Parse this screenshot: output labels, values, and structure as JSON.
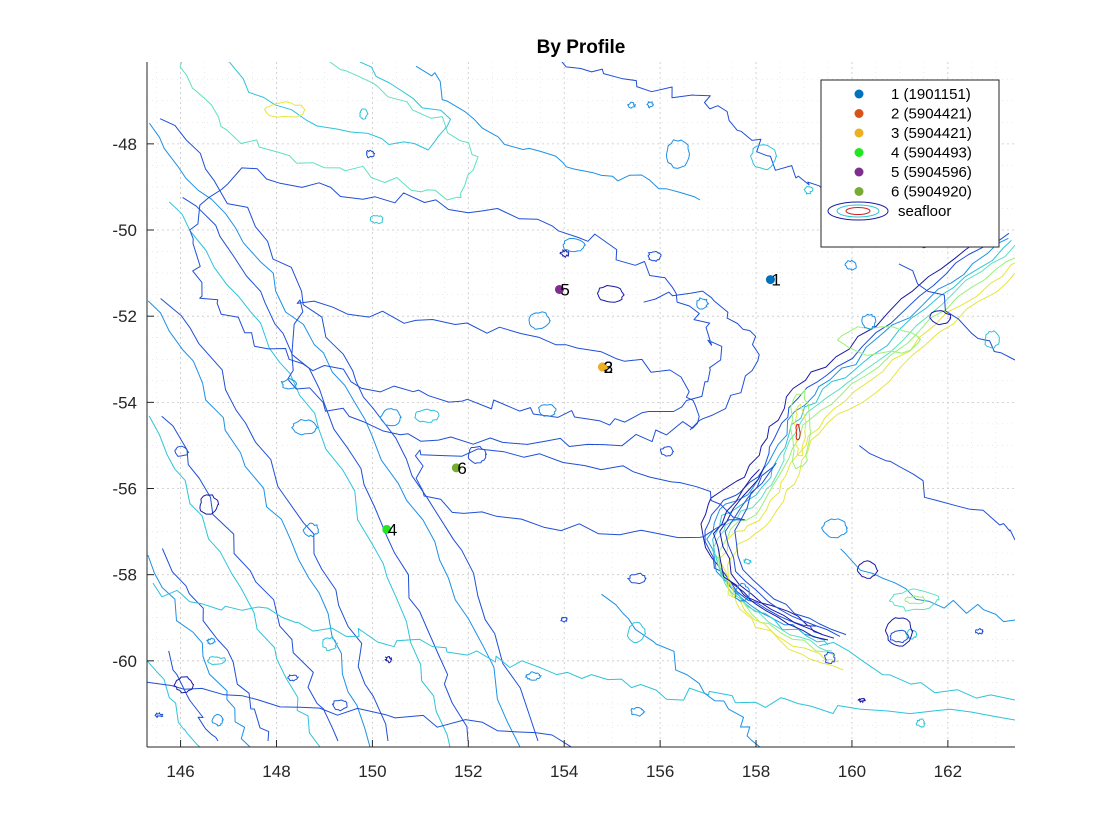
{
  "chart_data": {
    "type": "scatter",
    "title": "By Profile",
    "xlim": [
      145.3,
      163.4
    ],
    "ylim": [
      -62,
      -46.1
    ],
    "xticks": [
      146,
      148,
      150,
      152,
      154,
      156,
      158,
      160,
      162
    ],
    "yticks": [
      -48,
      -50,
      -52,
      -54,
      -56,
      -58,
      -60
    ],
    "grid": true,
    "minor_grid": true,
    "legend_position": "top-right",
    "series": [
      {
        "name": "1 (1901151)",
        "label": "1",
        "color": "#0072BD",
        "x": [
          158.3
        ],
        "y": [
          -51.15
        ]
      },
      {
        "name": "2 (5904421)",
        "label": "2",
        "color": "#D95319",
        "x": [
          154.8
        ],
        "y": [
          -53.18
        ]
      },
      {
        "name": "3 (5904421)",
        "label": "3",
        "color": "#EDB120",
        "x": [
          154.8
        ],
        "y": [
          -53.18
        ]
      },
      {
        "name": "4 (5904493)",
        "label": "4",
        "color": "#22E622",
        "x": [
          150.3
        ],
        "y": [
          -56.95
        ]
      },
      {
        "name": "5 (5904596)",
        "label": "5",
        "color": "#7E2F8E",
        "x": [
          153.9
        ],
        "y": [
          -51.38
        ]
      },
      {
        "name": "6 (5904920)",
        "label": "6",
        "color": "#77AC30",
        "x": [
          151.75
        ],
        "y": [
          -55.52
        ]
      }
    ],
    "contour_legend_label": "seafloor",
    "contour_colors": [
      "#1a1aa6",
      "#1f4fd8",
      "#1e90e6",
      "#2ec4d9",
      "#5ee0c0",
      "#9af07a",
      "#e6e640",
      "#d02020"
    ]
  }
}
